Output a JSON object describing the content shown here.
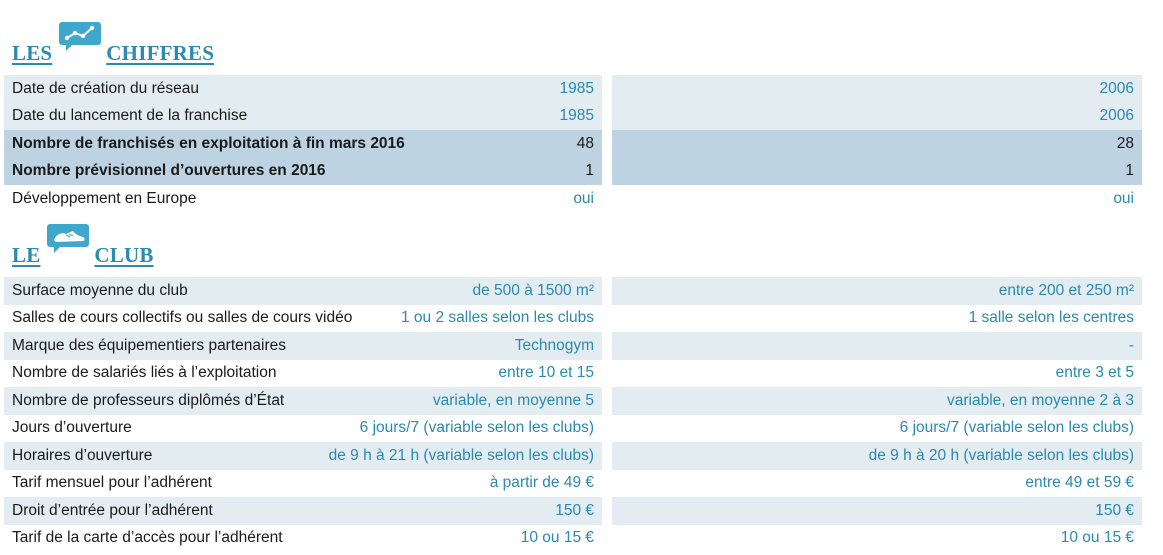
{
  "chiffres": {
    "title_left": "LES",
    "title_right": "CHIFFRES",
    "icon": "chart-line-icon",
    "rows": [
      {
        "label": "Date de création du réseau",
        "a": "1985",
        "b": "2006",
        "style": "light"
      },
      {
        "label": "Date du lancement de la franchise",
        "a": "1985",
        "b": "2006",
        "style": "light"
      },
      {
        "label": "Nombre de franchisés en exploitation à fin mars 2016",
        "a": "48",
        "b": "28",
        "style": "dark"
      },
      {
        "label": "Nombre prévisionnel d’ouvertures en 2016",
        "a": "1",
        "b": "1",
        "style": "dark"
      },
      {
        "label": "Développement en Europe",
        "a": "oui",
        "b": "oui",
        "style": "white"
      }
    ]
  },
  "club": {
    "title_left": "LE",
    "title_right": "CLUB",
    "icon": "sneaker-icon",
    "rows": [
      {
        "label": "Surface moyenne du club",
        "a": "de 500 à 1500 m²",
        "b": "entre 200 et 250 m²",
        "style": "light"
      },
      {
        "label": "Salles de cours collectifs ou salles de cours vidéo",
        "a": "1 ou 2 salles selon les clubs",
        "b": "1 salle selon les centres",
        "style": "white"
      },
      {
        "label": "Marque des équipementiers partenaires",
        "a": "Technogym",
        "b": "-",
        "style": "light"
      },
      {
        "label": "Nombre de salariés liés à l’exploitation",
        "a": "entre 10 et 15",
        "b": "entre 3 et 5",
        "style": "white"
      },
      {
        "label": "Nombre de professeurs diplômés d’État",
        "a": "variable, en moyenne 5",
        "b": "variable, en moyenne 2 à 3",
        "style": "light"
      },
      {
        "label": "Jours d’ouverture",
        "a": "6 jours/7 (variable selon les clubs)",
        "b": "6 jours/7 (variable selon les clubs)",
        "style": "white"
      },
      {
        "label": "Horaires d’ouverture",
        "a": "de 9 h à 21 h (variable selon les clubs)",
        "b": "de 9 h à 20 h (variable selon les clubs)",
        "style": "light"
      },
      {
        "label": "Tarif mensuel pour l’adhérent",
        "a": "à partir de 49 €",
        "b": "entre 49 et 59 €",
        "style": "white"
      },
      {
        "label": "Droit d’entrée pour l’adhérent",
        "a": "150 €",
        "b": "150 €",
        "style": "light"
      },
      {
        "label": "Tarif de la carte d’accès pour l’adhérent",
        "a": "10 ou 15 €",
        "b": "10 ou 15 €",
        "style": "white"
      }
    ]
  }
}
